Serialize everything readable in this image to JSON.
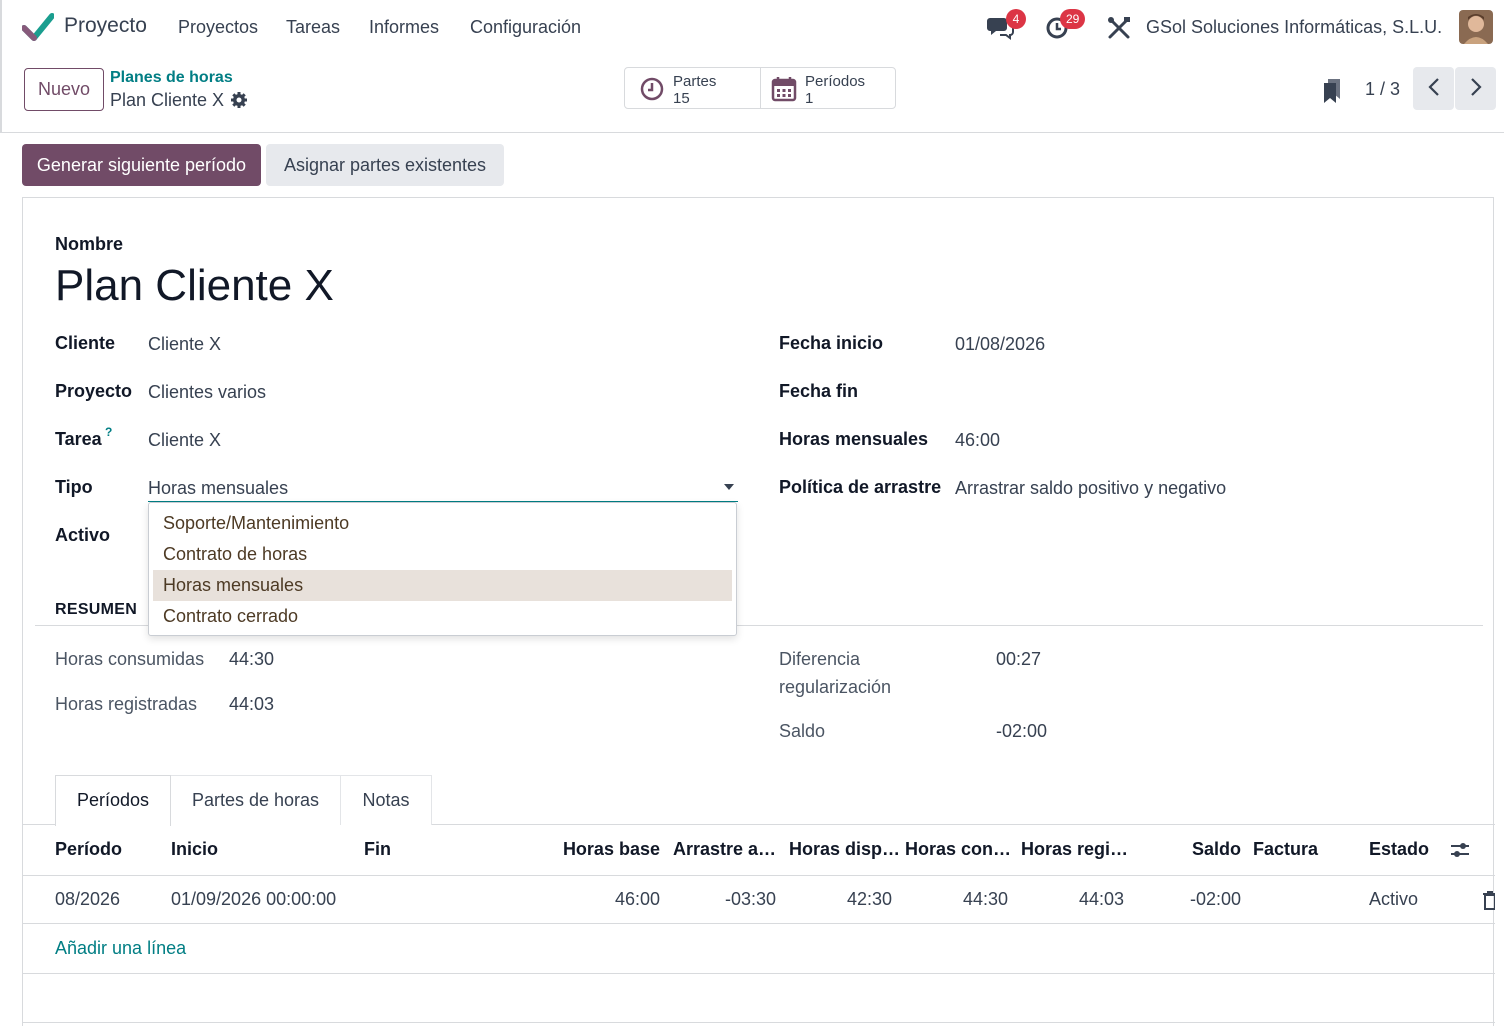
{
  "navbar": {
    "app_name": "Proyecto",
    "menu": [
      "Proyectos",
      "Tareas",
      "Informes",
      "Configuración"
    ],
    "messages_count": "4",
    "activities_count": "29",
    "company": "GSol Soluciones Informáticas, S.L.U."
  },
  "control_panel": {
    "new_button": "Nuevo",
    "breadcrumb_parent": "Planes de horas",
    "breadcrumb_current": "Plan Cliente X",
    "smart_buttons": [
      {
        "label": "Partes",
        "value": "15"
      },
      {
        "label": "Períodos",
        "value": "1"
      }
    ],
    "pager": "1 / 3"
  },
  "actions": {
    "primary": "Generar siguiente período",
    "secondary": "Asignar partes existentes"
  },
  "form": {
    "name_label": "Nombre",
    "name_value": "Plan Cliente X",
    "left": {
      "cliente_label": "Cliente",
      "cliente_value": "Cliente X",
      "proyecto_label": "Proyecto",
      "proyecto_value": "Clientes varios",
      "tarea_label": "Tarea",
      "tarea_help": "?",
      "tarea_value": "Cliente X",
      "tipo_label": "Tipo",
      "tipo_value": "Horas mensuales",
      "activo_label": "Activo"
    },
    "right": {
      "fecha_inicio_label": "Fecha inicio",
      "fecha_inicio_value": "01/08/2026",
      "fecha_fin_label": "Fecha fin",
      "horas_mensuales_label": "Horas mensuales",
      "horas_mensuales_value": "46:00",
      "politica_label": "Política de arrastre",
      "politica_value": "Arrastrar saldo positivo y negativo"
    },
    "tipo_options": [
      "Soporte/Mantenimiento",
      "Contrato de horas",
      "Horas mensuales",
      "Contrato cerrado"
    ],
    "tipo_selected_index": 2
  },
  "resumen": {
    "title": "RESUMEN",
    "horas_consumidas_label": "Horas consumidas",
    "horas_consumidas_value": "44:30",
    "horas_registradas_label": "Horas registradas",
    "horas_registradas_value": "44:03",
    "diferencia_label_1": "Diferencia",
    "diferencia_label_2": "regularización",
    "diferencia_value": "00:27",
    "saldo_label": "Saldo",
    "saldo_value": "-02:00"
  },
  "tabs": [
    "Períodos",
    "Partes de horas",
    "Notas"
  ],
  "table": {
    "headers": [
      "Período",
      "Inicio",
      "Fin",
      "Horas base",
      "Arrastre a…",
      "Horas disp…",
      "Horas con…",
      "Horas regi…",
      "Saldo",
      "Factura",
      "Estado"
    ],
    "rows": [
      {
        "periodo": "08/2026",
        "inicio": "01/09/2026 00:00:00",
        "fin": "",
        "horas_base": "46:00",
        "arrastre": "-03:30",
        "disponibles": "42:30",
        "consumidas": "44:30",
        "registradas": "44:03",
        "saldo": "-02:00",
        "factura": "",
        "estado": "Activo"
      }
    ],
    "add_line": "Añadir una línea"
  }
}
